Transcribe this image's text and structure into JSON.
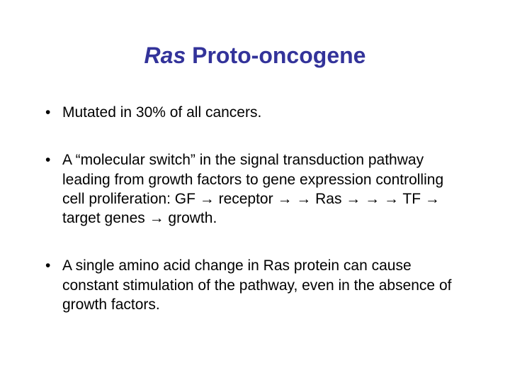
{
  "slide": {
    "title_italic": "Ras",
    "title_rest": " Proto-oncogene",
    "title_color": "#33339a",
    "title_fontsize": 32,
    "bullet_fontsize": 21,
    "text_color": "#000000",
    "background_color": "#ffffff",
    "bullets": [
      "Mutated in 30% of all cancers.",
      "A “molecular switch” in the signal transduction pathway leading from growth factors to gene expression controlling cell proliferation: GF → receptor → → Ras → → → TF → target genes → growth.",
      "A single amino acid change in Ras protein can cause constant stimulation of the pathway, even in the absence of growth factors."
    ]
  }
}
